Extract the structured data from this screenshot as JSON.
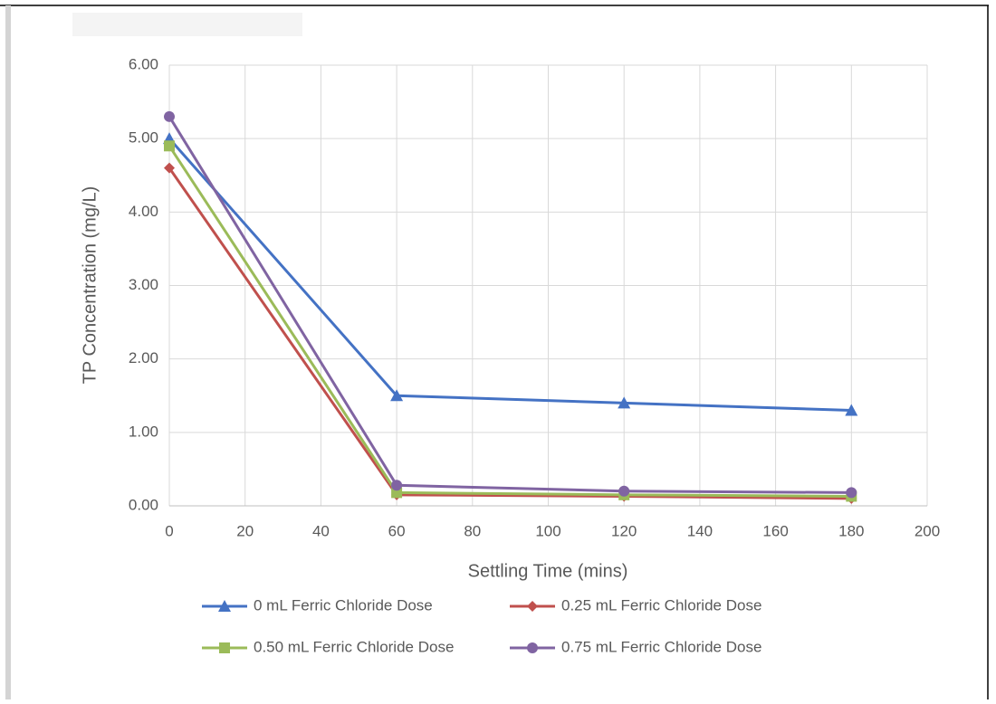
{
  "chart_data": {
    "type": "line",
    "x_label": "Settling Time (mins)",
    "y_label": "TP Concentration (mg/L)",
    "x": [
      0,
      60,
      120,
      180
    ],
    "series": [
      {
        "name": "0 mL Ferric Chloride Dose",
        "color": "#4472c4",
        "marker": "triangle",
        "values": [
          5.0,
          1.5,
          1.4,
          1.3
        ]
      },
      {
        "name": "0.25 mL Ferric Chloride Dose",
        "color": "#c0504d",
        "marker": "diamond",
        "values": [
          4.6,
          0.15,
          0.13,
          0.1
        ]
      },
      {
        "name": "0.50 mL Ferric Chloride Dose",
        "color": "#9bbb59",
        "marker": "square",
        "values": [
          4.9,
          0.18,
          0.15,
          0.13
        ]
      },
      {
        "name": "0.75 mL Ferric Chloride Dose",
        "color": "#8064a2",
        "marker": "circle",
        "values": [
          5.3,
          0.28,
          0.2,
          0.18
        ]
      }
    ],
    "xlim": [
      0,
      200
    ],
    "xticks": [
      0,
      20,
      40,
      60,
      80,
      100,
      120,
      140,
      160,
      180,
      200
    ],
    "ylim": [
      0,
      6
    ],
    "yticks": [
      {
        "value": 0,
        "label": "0.00"
      },
      {
        "value": 1,
        "label": "1.00"
      },
      {
        "value": 2,
        "label": "2.00"
      },
      {
        "value": 3,
        "label": "3.00"
      },
      {
        "value": 4,
        "label": "4.00"
      },
      {
        "value": 5,
        "label": "5.00"
      },
      {
        "value": 6,
        "label": "6.00"
      }
    ],
    "grid": true,
    "legend": "bottom"
  }
}
